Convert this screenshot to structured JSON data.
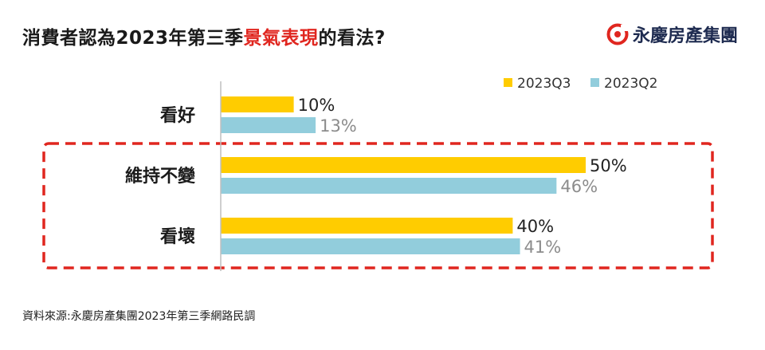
{
  "title": {
    "pre": "消費者認為2023年第三季",
    "highlight": "景氣表現",
    "post": "的看法?"
  },
  "logo": {
    "text": "永慶房產集團",
    "icon": "yungching-logo-icon"
  },
  "source": "資料來源:永慶房產集團2023年第三季網路民調",
  "colors": {
    "q3": "#ffcc00",
    "q2": "#92cddc",
    "highlight": "#e0261f",
    "q2_label": "#8c8c8c"
  },
  "chart_data": {
    "type": "bar",
    "orientation": "horizontal",
    "categories": [
      "看好",
      "維持不變",
      "看壞"
    ],
    "series": [
      {
        "name": "2023Q3",
        "values": [
          10,
          50,
          40
        ],
        "labels": [
          "10%",
          "50%",
          "40%"
        ]
      },
      {
        "name": "2023Q2",
        "values": [
          13,
          46,
          41
        ],
        "labels": [
          "13%",
          "46%",
          "41%"
        ]
      }
    ],
    "xlim": [
      0,
      60
    ],
    "unit": "%",
    "grid": false,
    "legend": "top-right",
    "highlighted_categories": [
      "維持不變",
      "看壞"
    ]
  }
}
